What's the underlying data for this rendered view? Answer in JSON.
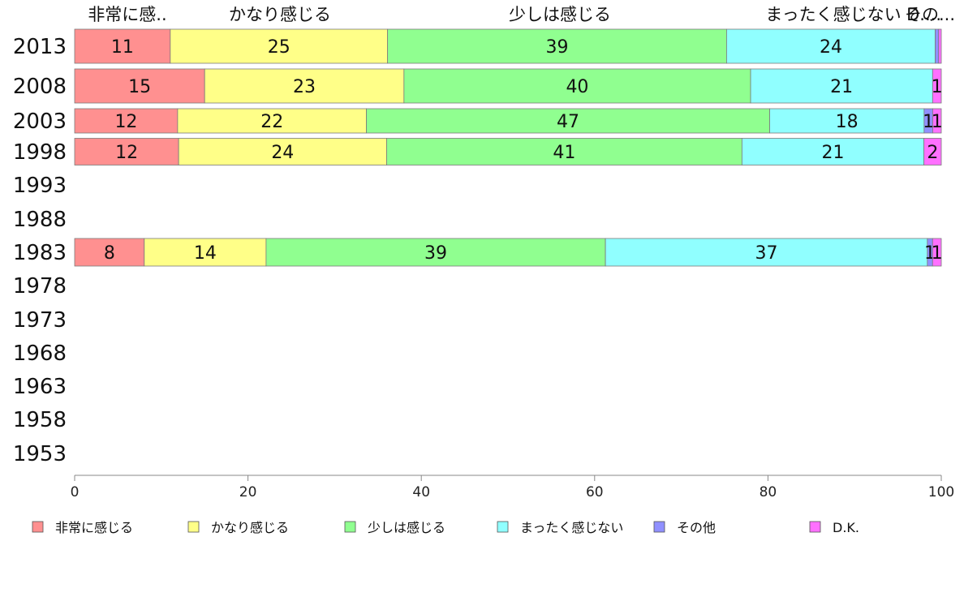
{
  "chart_data": {
    "type": "bar",
    "orientation": "horizontal",
    "stacked": true,
    "categories": [
      "2013",
      "2008",
      "2003",
      "1998",
      "1993",
      "1988",
      "1983",
      "1978",
      "1973",
      "1968",
      "1963",
      "1958",
      "1953"
    ],
    "series": [
      {
        "name": "非常に感じる",
        "top_label": "非常に感..",
        "color": "#ff9090",
        "values": [
          11,
          15,
          12,
          12,
          null,
          null,
          8,
          null,
          null,
          null,
          null,
          null,
          null
        ]
      },
      {
        "name": "かなり感じる",
        "top_label": "かなり感じる",
        "color": "#ffff88",
        "values": [
          25,
          23,
          22,
          24,
          null,
          null,
          14,
          null,
          null,
          null,
          null,
          null,
          null
        ]
      },
      {
        "name": "少しは感じる",
        "top_label": "少しは感じる",
        "color": "#90ff90",
        "values": [
          39,
          40,
          47,
          41,
          null,
          null,
          39,
          null,
          null,
          null,
          null,
          null,
          null
        ]
      },
      {
        "name": "まったく感じない",
        "top_label": "まったく感じない",
        "color": "#90ffff",
        "values": [
          24,
          21,
          18,
          21,
          null,
          null,
          37,
          null,
          null,
          null,
          null,
          null,
          null
        ]
      },
      {
        "name": "その他",
        "top_label": "その...",
        "color": "#9090ff",
        "values": [
          0.4,
          0,
          1,
          0,
          null,
          null,
          0.6,
          null,
          null,
          null,
          null,
          null,
          null
        ]
      },
      {
        "name": "D.K.",
        "top_label": "D....",
        "color": "#ff70ff",
        "values": [
          0.3,
          1,
          1,
          2,
          null,
          null,
          1,
          null,
          null,
          null,
          null,
          null,
          null
        ]
      }
    ],
    "segment_labels": [
      [
        "11",
        "25",
        "39",
        "24",
        "",
        ""
      ],
      [
        "15",
        "23",
        "40",
        "21",
        "",
        "1"
      ],
      [
        "12",
        "22",
        "47",
        "18",
        "1",
        "1"
      ],
      [
        "12",
        "24",
        "41",
        "21",
        "",
        "2"
      ],
      [],
      [],
      [
        "8",
        "14",
        "39",
        "37",
        "1",
        "1"
      ],
      [],
      [],
      [],
      [],
      [],
      []
    ],
    "xlim": [
      0,
      100
    ],
    "xticks": [
      0,
      20,
      40,
      60,
      80,
      100
    ],
    "grid": false,
    "legend": {
      "position": "bottom",
      "entries": [
        "非常に感じる",
        "かなり感じる",
        "少しは感じる",
        "まったく感じない",
        "その他",
        "D.K."
      ]
    }
  }
}
